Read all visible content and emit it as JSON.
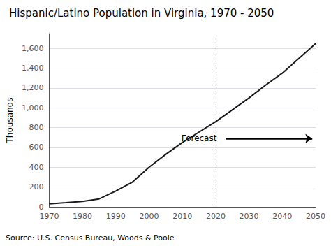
{
  "chart_data": {
    "type": "line",
    "title": "Hispanic/Latino Population in Virginia, 1970 - 2050",
    "ylabel": "Thousands",
    "source": "Source: U.S. Census Bureau, Woods & Poole",
    "x": [
      1970,
      1975,
      1980,
      1985,
      1990,
      1995,
      2000,
      2005,
      2010,
      2015,
      2020,
      2025,
      2030,
      2035,
      2040,
      2045,
      2050
    ],
    "values": [
      30,
      42,
      55,
      80,
      160,
      250,
      400,
      530,
      650,
      755,
      860,
      980,
      1100,
      1230,
      1350,
      1500,
      1650
    ],
    "color": "#1a1a1a",
    "xlim": [
      1970,
      2050
    ],
    "ylim": [
      0,
      1750
    ],
    "xticks": [
      1970,
      1980,
      1990,
      2000,
      2010,
      2020,
      2030,
      2040,
      2050
    ],
    "yticks": [
      0,
      200,
      400,
      600,
      800,
      {
        "value": 1000,
        "label": "1,000"
      },
      {
        "value": 1200,
        "label": "1,200"
      },
      {
        "value": 1400,
        "label": "1,400"
      },
      {
        "value": 1600,
        "label": "1,600"
      }
    ],
    "grid": true,
    "vlines": [
      2020
    ],
    "arrows": [
      {
        "x_start": 2023,
        "x_end": 2049,
        "y": 690
      }
    ],
    "annotations": [
      {
        "text": "Forecast",
        "x": 2022,
        "y": 690
      }
    ]
  }
}
